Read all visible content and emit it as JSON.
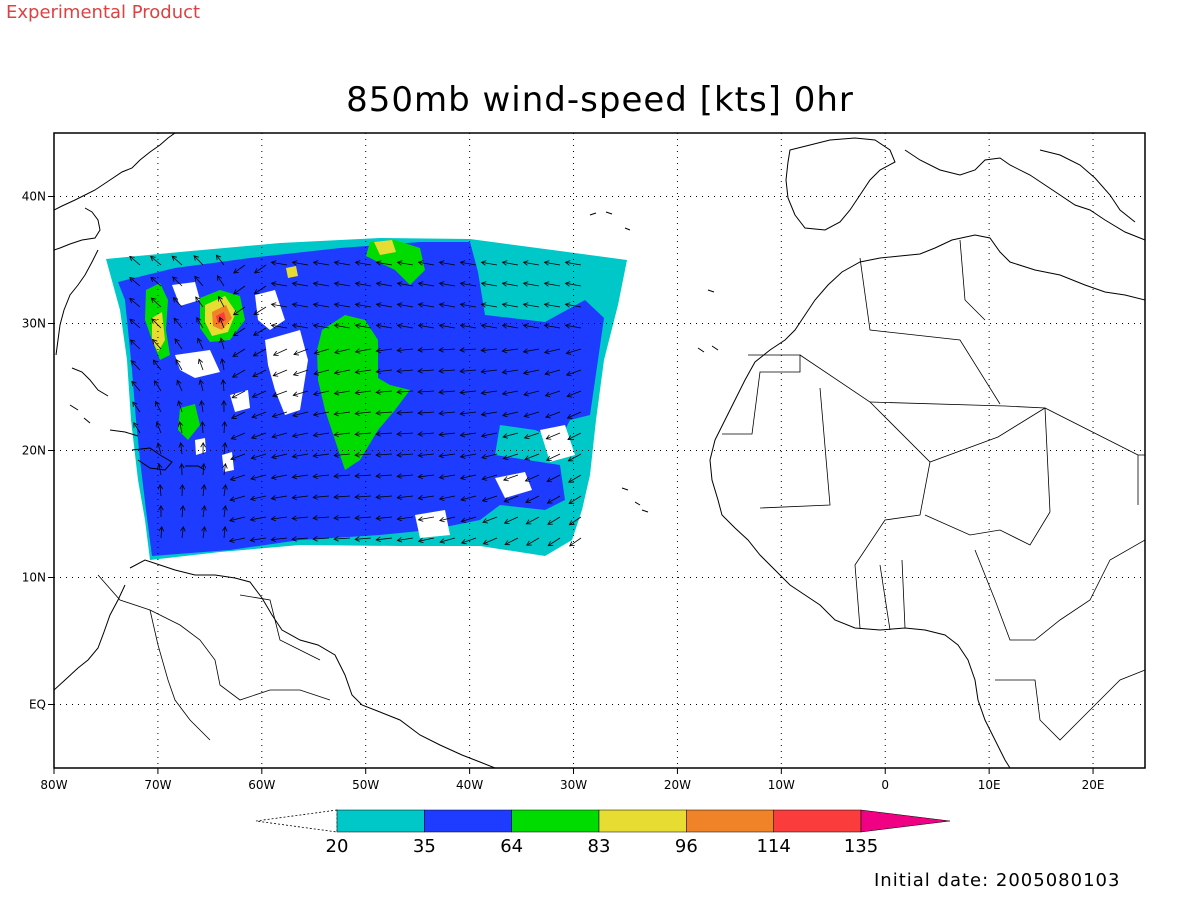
{
  "header": {
    "experimental_label": "Experimental Product"
  },
  "map": {
    "title": "850mb wind-speed [kts] 0hr",
    "lon_range": [
      -80,
      25
    ],
    "lat_range": [
      -5,
      45
    ],
    "lon_ticks": [
      {
        "value": -80,
        "label": "80W"
      },
      {
        "value": -70,
        "label": "70W"
      },
      {
        "value": -60,
        "label": "60W"
      },
      {
        "value": -50,
        "label": "50W"
      },
      {
        "value": -40,
        "label": "40W"
      },
      {
        "value": -30,
        "label": "30W"
      },
      {
        "value": -20,
        "label": "20W"
      },
      {
        "value": -10,
        "label": "10W"
      },
      {
        "value": 0,
        "label": "0"
      },
      {
        "value": 10,
        "label": "10E"
      },
      {
        "value": 20,
        "label": "20E"
      }
    ],
    "lat_ticks": [
      {
        "value": 40,
        "label": "40N"
      },
      {
        "value": 30,
        "label": "30N"
      },
      {
        "value": 20,
        "label": "20N"
      },
      {
        "value": 10,
        "label": "10N"
      },
      {
        "value": 0,
        "label": "EQ"
      }
    ],
    "grid": "dotted"
  },
  "colorbar": {
    "bins": [
      {
        "color": "#00c8c8"
      },
      {
        "color": "#1e3cff"
      },
      {
        "color": "#00dc00"
      },
      {
        "color": "#e6dc32"
      },
      {
        "color": "#f08228"
      },
      {
        "color": "#fa3c3c"
      }
    ],
    "over_color": "#f00082",
    "labels": [
      "20",
      "35",
      "64",
      "83",
      "96",
      "114",
      "135"
    ]
  },
  "footer": {
    "initial_date": "Initial date: 2005080103"
  }
}
